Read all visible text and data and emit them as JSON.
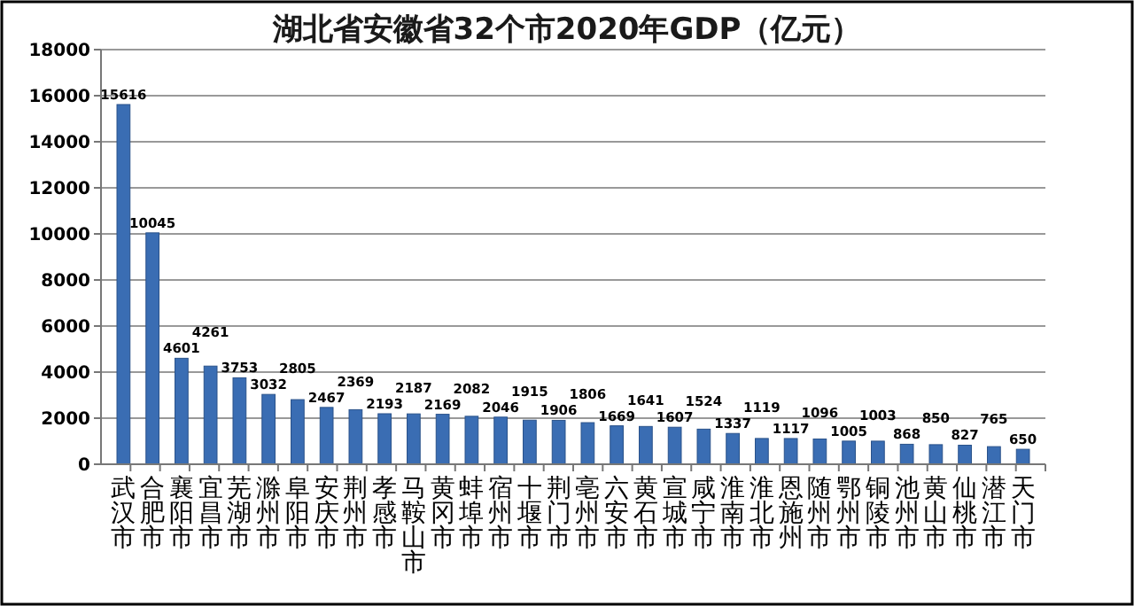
{
  "chart_data": {
    "type": "bar",
    "title": "湖北省安徽省32个市2020年GDP（亿元）",
    "categories": [
      "武汉市",
      "合肥市",
      "襄阳市",
      "宜昌市",
      "芜湖市",
      "滁州市",
      "阜阳市",
      "安庆市",
      "荆州市",
      "孝感市",
      "马鞍山市",
      "黄冈市",
      "蚌埠市",
      "宿州市",
      "十堰市",
      "荆门市",
      "亳州市",
      "六安市",
      "黄石市",
      "宣城市",
      "咸宁市",
      "淮南市",
      "淮北市",
      "恩施州",
      "随州市",
      "鄂州市",
      "铜陵市",
      "池州市",
      "黄山市",
      "仙桃市",
      "潜江市",
      "天门市"
    ],
    "values": [
      15616,
      10045,
      4601,
      4261,
      3753,
      3032,
      2805,
      2467,
      2369,
      2193,
      2187,
      2169,
      2082,
      2046,
      1915,
      1906,
      1806,
      1669,
      1641,
      1607,
      1524,
      1337,
      1119,
      1117,
      1096,
      1005,
      1003,
      868,
      850,
      827,
      765,
      650
    ],
    "color": "#3a6db3",
    "ylim": [
      0,
      18000
    ],
    "yticks": [
      0,
      2000,
      4000,
      6000,
      8000,
      10000,
      12000,
      14000,
      16000,
      18000
    ],
    "grid": "y",
    "data_labels": true
  }
}
